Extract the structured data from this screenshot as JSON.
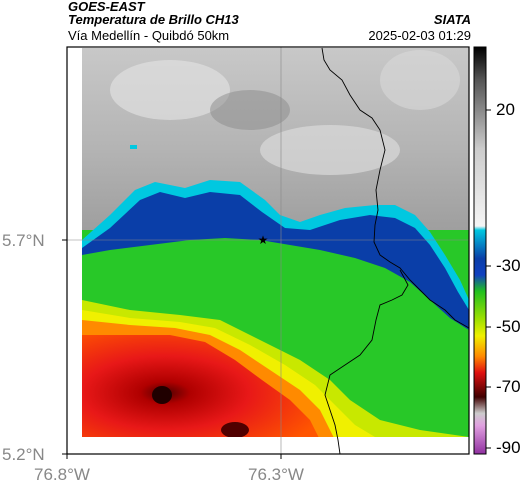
{
  "header": {
    "satellite": "GOES-EAST",
    "product": "Temperatura de Brillo CH13",
    "region": "Vía Medellín - Quibdó 50km",
    "organization": "SIATA",
    "datetime": "2025-02-03 01:29"
  },
  "axes": {
    "lat_labels": [
      "5.7°N",
      "5.2°N"
    ],
    "lon_labels": [
      "76.8°W",
      "76.3°W"
    ]
  },
  "colorbar": {
    "tick_labels": [
      "20",
      "-30",
      "-50",
      "-70",
      "-90"
    ],
    "colors": {
      "dark": "#1a1a1a",
      "gray": "#9a9a9a",
      "cyan": "#00c8e0",
      "blue": "#0a3ea8",
      "green": "#28c828",
      "yellow": "#f0f000",
      "orange": "#ff8a00",
      "red": "#e01010",
      "darkred": "#400000",
      "magenta": "#c050c0"
    }
  },
  "marker": {
    "symbol": "★"
  }
}
